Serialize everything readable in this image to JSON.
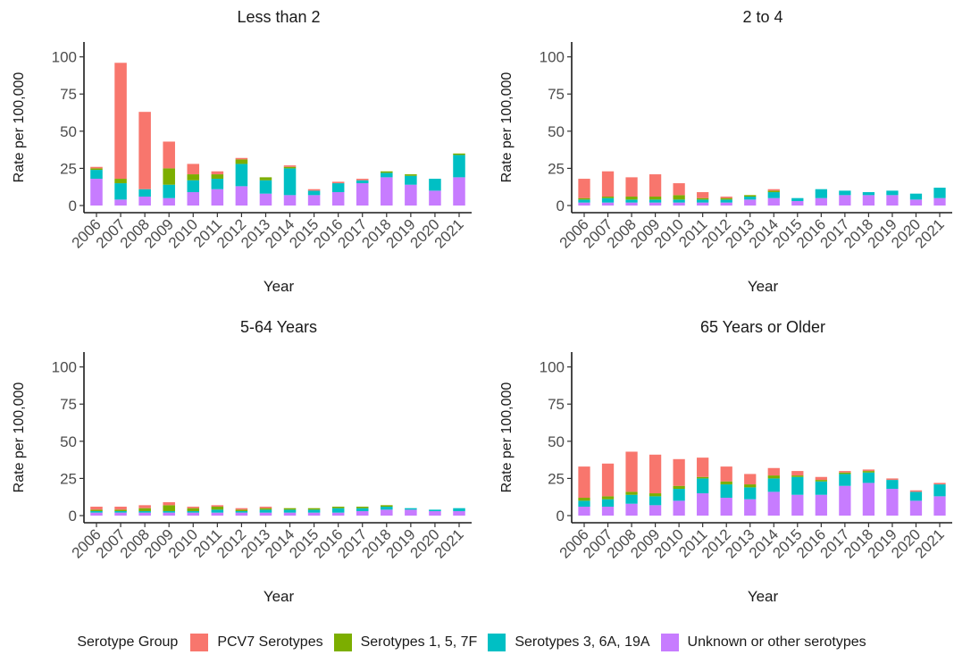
{
  "chart_data": {
    "type": "bar",
    "stacked": true,
    "categories": [
      "2006",
      "2007",
      "2008",
      "2009",
      "2010",
      "2011",
      "2012",
      "2013",
      "2014",
      "2015",
      "2016",
      "2017",
      "2018",
      "2019",
      "2020",
      "2021"
    ],
    "ylim": [
      0,
      110
    ],
    "yticks": [
      0,
      25,
      50,
      75,
      100
    ],
    "xlabel": "Year",
    "ylabel": "Rate per 100,000",
    "grid": false,
    "legend": {
      "title": "Serotype Group",
      "position": "bottom",
      "entries": [
        "PCV7 Serotypes",
        "Serotypes 1, 5, 7F",
        "Serotypes 3, 6A, 19A",
        "Unknown or other serotypes"
      ]
    },
    "colors": {
      "PCV7 Serotypes": "#F8766D",
      "Serotypes 1, 5, 7F": "#7CAE00",
      "Serotypes 3, 6A, 19A": "#00BFC4",
      "Unknown or other serotypes": "#C77CFF"
    },
    "panels": [
      {
        "title": "Less than 2",
        "series": [
          {
            "name": "Unknown or other serotypes",
            "values": [
              18,
              4,
              6,
              5,
              9,
              11,
              13,
              8,
              7,
              7,
              9,
              15,
              19,
              14,
              10,
              19
            ]
          },
          {
            "name": "Serotypes 3, 6A, 19A",
            "values": [
              6,
              11,
              5,
              9,
              8,
              7,
              15,
              9,
              18,
              3,
              6,
              2,
              3,
              6,
              8,
              15
            ]
          },
          {
            "name": "Serotypes 1, 5, 7F",
            "values": [
              1,
              3,
              0,
              11,
              4,
              3,
              3,
              2,
              1,
              0,
              0,
              0,
              1,
              1,
              0,
              1
            ]
          },
          {
            "name": "PCV7 Serotypes",
            "values": [
              1,
              78,
              52,
              18,
              7,
              2,
              1,
              0,
              1,
              1,
              1,
              1,
              0,
              0,
              0,
              0
            ]
          }
        ]
      },
      {
        "title": "2 to 4",
        "series": [
          {
            "name": "Unknown or other serotypes",
            "values": [
              2,
              2,
              2,
              2,
              2,
              2,
              2,
              4,
              5,
              3,
              5,
              7,
              7,
              7,
              4,
              5
            ]
          },
          {
            "name": "Serotypes 3, 6A, 19A",
            "values": [
              2,
              3,
              2,
              2,
              2,
              2,
              2,
              2,
              4,
              2,
              6,
              3,
              2,
              3,
              4,
              7
            ]
          },
          {
            "name": "Serotypes 1, 5, 7F",
            "values": [
              1,
              1,
              2,
              2,
              3,
              1,
              1,
              1,
              1,
              0,
              0,
              0,
              0,
              0,
              0,
              0
            ]
          },
          {
            "name": "PCV7 Serotypes",
            "values": [
              13,
              17,
              13,
              15,
              8,
              4,
              1,
              0,
              1,
              0,
              0,
              0,
              0,
              0,
              0,
              0
            ]
          }
        ]
      },
      {
        "title": "5-64 Years",
        "series": [
          {
            "name": "Unknown or other serotypes",
            "values": [
              2,
              2,
              2,
              2,
              2,
              2,
              2,
              2,
              2,
              2,
              2,
              3,
              4,
              4,
              3,
              3
            ]
          },
          {
            "name": "Serotypes 3, 6A, 19A",
            "values": [
              1,
              1,
              1,
              1,
              1,
              2,
              1,
              2,
              2,
              2,
              3,
              2,
              2,
              1,
              1,
              2
            ]
          },
          {
            "name": "Serotypes 1, 5, 7F",
            "values": [
              1,
              1,
              2,
              4,
              2,
              2,
              1,
              1,
              1,
              1,
              1,
              1,
              1,
              0,
              0,
              0
            ]
          },
          {
            "name": "PCV7 Serotypes",
            "values": [
              2,
              2,
              2,
              2,
              1,
              1,
              1,
              1,
              0,
              0,
              0,
              0,
              0,
              0,
              0,
              0
            ]
          }
        ]
      },
      {
        "title": "65 Years or Older",
        "series": [
          {
            "name": "Unknown or other serotypes",
            "values": [
              6,
              6,
              8,
              7,
              10,
              15,
              12,
              11,
              16,
              14,
              14,
              20,
              22,
              18,
              10,
              13
            ]
          },
          {
            "name": "Serotypes 3, 6A, 19A",
            "values": [
              4,
              5,
              6,
              6,
              8,
              10,
              9,
              8,
              9,
              12,
              9,
              8,
              7,
              6,
              6,
              8
            ]
          },
          {
            "name": "Serotypes 1, 5, 7F",
            "values": [
              2,
              2,
              2,
              2,
              2,
              1,
              2,
              2,
              2,
              1,
              1,
              1,
              1,
              0,
              0,
              0
            ]
          },
          {
            "name": "PCV7 Serotypes",
            "values": [
              21,
              22,
              27,
              26,
              18,
              13,
              10,
              7,
              5,
              3,
              2,
              1,
              1,
              1,
              1,
              1
            ]
          }
        ]
      }
    ]
  }
}
